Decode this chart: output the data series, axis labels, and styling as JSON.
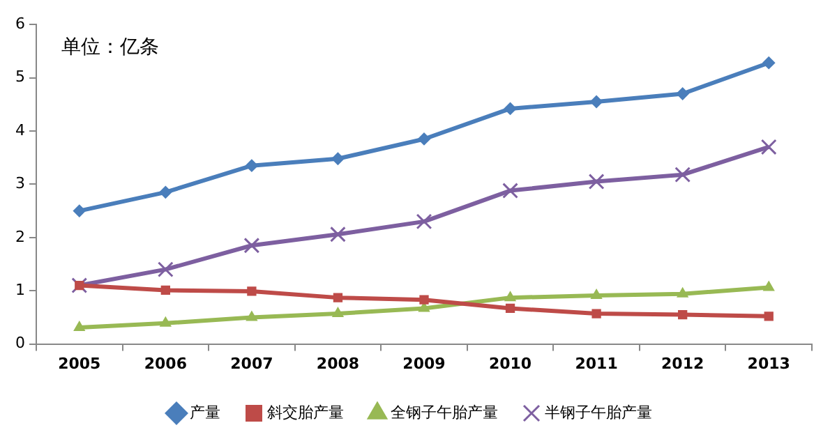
{
  "chart_data": {
    "type": "line",
    "annotations": [
      "单位：亿条"
    ],
    "categories": [
      "2005",
      "2006",
      "2007",
      "2008",
      "2009",
      "2010",
      "2011",
      "2012",
      "2013"
    ],
    "series": [
      {
        "name": "产量",
        "color": "#4a7ebb",
        "marker": "diamond",
        "values": [
          2.5,
          2.85,
          3.35,
          3.48,
          3.85,
          4.42,
          4.55,
          4.7,
          5.28
        ]
      },
      {
        "name": "斜交胎产量",
        "color": "#be4b48",
        "marker": "square",
        "values": [
          1.1,
          1.01,
          0.99,
          0.87,
          0.83,
          0.67,
          0.57,
          0.55,
          0.52
        ]
      },
      {
        "name": "全钢子午胎产量",
        "color": "#98b954",
        "marker": "triangle",
        "values": [
          0.31,
          0.39,
          0.5,
          0.57,
          0.67,
          0.87,
          0.91,
          0.94,
          1.06
        ]
      },
      {
        "name": "半钢子午胎产量",
        "color": "#7d5fa0",
        "marker": "cross",
        "values": [
          1.1,
          1.4,
          1.85,
          2.06,
          2.3,
          2.88,
          3.05,
          3.18,
          3.7
        ]
      }
    ],
    "ylim": [
      0,
      6
    ],
    "yticks": [
      0,
      1,
      2,
      3,
      4,
      5,
      6
    ],
    "legend": "bottom",
    "line_style": "solid"
  }
}
